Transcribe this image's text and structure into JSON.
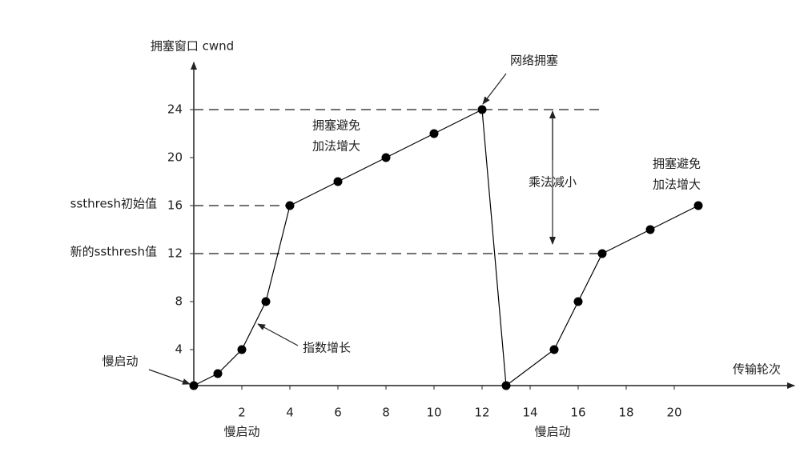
{
  "chart_data": {
    "type": "line",
    "y_label": "拥塞窗口 cwnd",
    "x_label": "传输轮次",
    "x": [
      0,
      1,
      2,
      3,
      4,
      6,
      8,
      10,
      12,
      13,
      15,
      16,
      17,
      19,
      21
    ],
    "series": [
      {
        "color": "#000000",
        "values": [
          1,
          2,
          4,
          8,
          16,
          18,
          20,
          22,
          24,
          1,
          4,
          8,
          12,
          14,
          16
        ]
      }
    ],
    "xlim": [
      0,
      25
    ],
    "ylim": [
      1,
      28
    ],
    "xticks": [
      2,
      4,
      6,
      8,
      10,
      12,
      14,
      16,
      18,
      20
    ],
    "yticks": [
      4,
      8,
      12,
      16,
      20,
      24
    ],
    "reference_lines": [
      {
        "y": 24,
        "x": [
          0,
          17
        ]
      },
      {
        "y": 16,
        "x": [
          0,
          4
        ]
      },
      {
        "y": 12,
        "x": [
          0,
          17
        ]
      }
    ],
    "annotations": [
      "网络拥塞",
      "拥塞避免",
      "加法增大",
      "乘法减小",
      "拥塞避免",
      "加法增大",
      "指数增长",
      "慢启动",
      "慢启动",
      "慢启动",
      "ssthresh初始值",
      "新的ssthresh值"
    ]
  }
}
